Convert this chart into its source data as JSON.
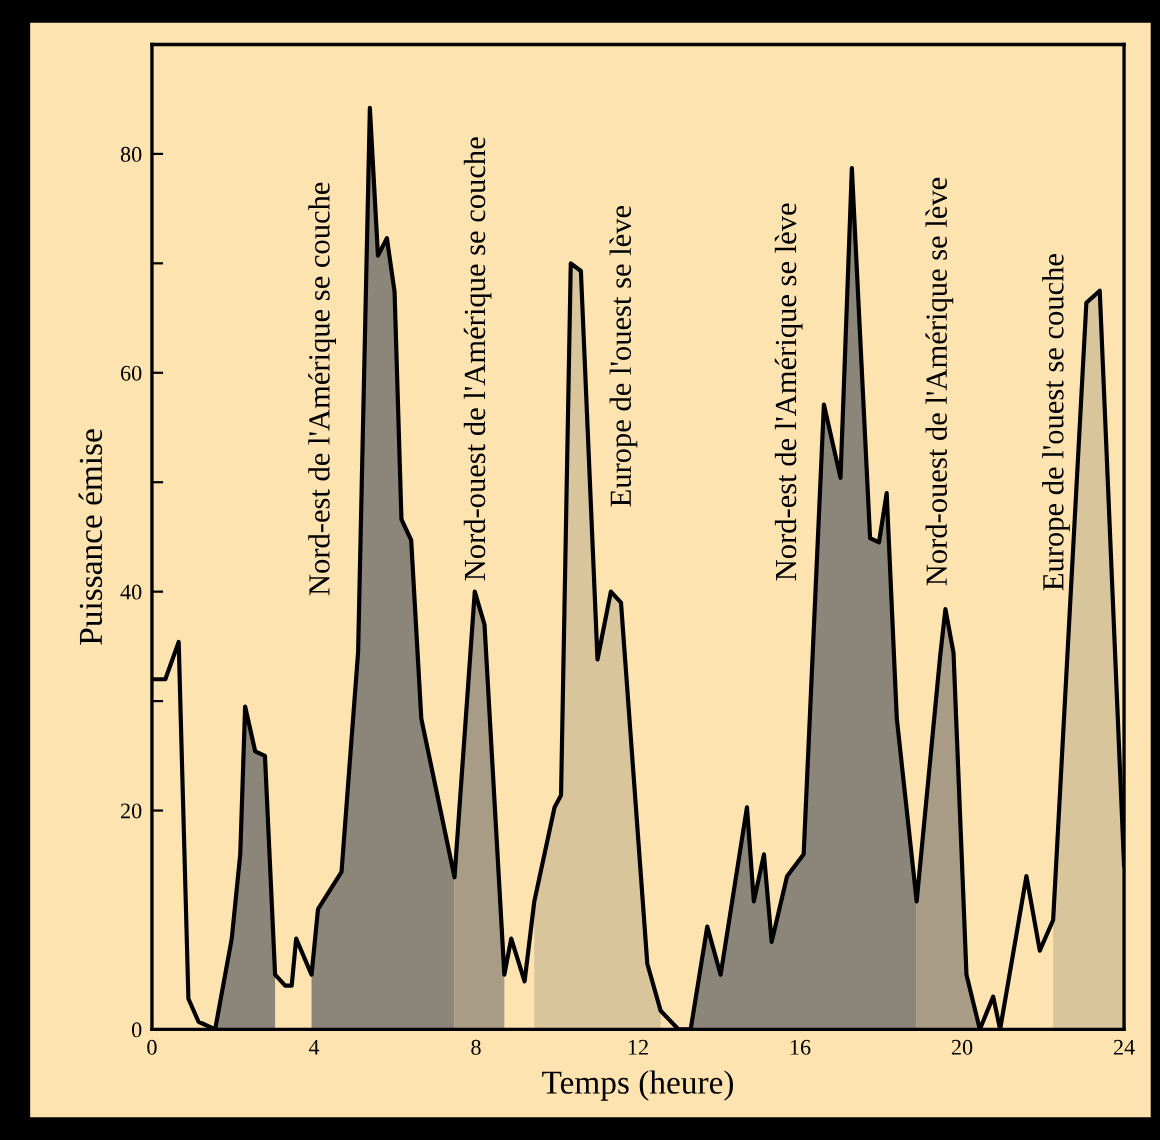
{
  "chart_data": {
    "type": "line",
    "xlabel": "Temps (heure)",
    "ylabel": "Puissance émise",
    "xlim": [
      0,
      24
    ],
    "xticks": [
      0,
      4,
      8,
      12,
      16,
      20,
      24
    ],
    "ylim": [
      0,
      90
    ],
    "yticks": [
      0,
      20,
      {
        "value": 30,
        "label": null
      },
      40,
      {
        "value": 50,
        "label": null
      },
      60,
      {
        "value": 70,
        "label": null
      },
      80
    ],
    "grid": false,
    "legend": false,
    "marker": "none",
    "line_style": "solid",
    "series": [
      {
        "color": "#000000",
        "x": [
          0,
          0.33,
          0.66,
          0.9,
          1.15,
          1.56,
          1.97,
          2.18,
          2.3,
          2.55,
          2.79,
          3.04,
          3.29,
          3.45,
          3.56,
          3.94,
          4.1,
          4.68,
          5.09,
          5.38,
          5.58,
          5.8,
          5.99,
          6.16,
          6.4,
          6.65,
          7.47,
          7.97,
          8.21,
          8.7,
          8.87,
          9.2,
          9.44,
          9.94,
          10.1,
          10.34,
          10.59,
          11.0,
          11.33,
          11.58,
          12.23,
          12.56,
          13.0,
          13.3,
          13.71,
          14.04,
          14.69,
          14.86,
          15.11,
          15.3,
          15.68,
          16.09,
          16.59,
          17.0,
          17.28,
          17.73,
          17.95,
          18.14,
          18.39,
          18.88,
          19.46,
          19.59,
          19.79,
          20.11,
          20.44,
          20.77,
          20.94,
          21.59,
          21.92,
          22.25,
          23.07,
          23.4,
          24
        ],
        "values": [
          32,
          32,
          35.4,
          2.8,
          0.7,
          0,
          8.3,
          16,
          29.5,
          25.4,
          25,
          5,
          4,
          4,
          8.3,
          5,
          11,
          14.4,
          34.5,
          84.2,
          70.7,
          72.3,
          67.4,
          46.6,
          44.7,
          28.4,
          13.9,
          40,
          37,
          5,
          8.3,
          4.4,
          11.7,
          20.3,
          21.4,
          70,
          69.3,
          33.8,
          40,
          39,
          6,
          1.7,
          0,
          0,
          9.4,
          5,
          20.3,
          11.7,
          16,
          8,
          14,
          16,
          57.1,
          50.4,
          78.7,
          44.9,
          44.5,
          49,
          28.4,
          11.7,
          34.1,
          38.4,
          34.4,
          5,
          0,
          3,
          0,
          14,
          7.2,
          10,
          66.4,
          67.5,
          15
        ]
      },
      {
        "type": "area",
        "color": "#8c8579",
        "x": [
          1.56,
          1.97,
          2.18,
          2.3,
          2.55,
          2.79,
          3.04
        ],
        "values": [
          0,
          8.3,
          16,
          29.5,
          25.4,
          25,
          5
        ]
      },
      {
        "type": "area",
        "color": "#8c8579",
        "x": [
          3.94,
          4.1,
          4.68,
          5.09,
          5.38,
          5.58,
          5.8,
          5.99,
          6.16,
          6.4,
          6.65,
          7.47
        ],
        "values": [
          5,
          11,
          14.4,
          34.5,
          84.2,
          70.7,
          72.3,
          67.4,
          46.6,
          44.7,
          28.4,
          13.9
        ]
      },
      {
        "type": "area",
        "color": "#a89c86",
        "x": [
          7.47,
          7.97,
          8.21,
          8.7
        ],
        "values": [
          13.9,
          40,
          37,
          5
        ]
      },
      {
        "type": "area",
        "color": "#d9c59c",
        "x": [
          9.44,
          9.94,
          10.1,
          10.34,
          10.59,
          11.0,
          11.33,
          11.58,
          12.23,
          12.56
        ],
        "values": [
          11.7,
          20.3,
          21.4,
          70,
          69.3,
          33.8,
          40,
          39,
          6,
          1.7
        ]
      },
      {
        "type": "area",
        "color": "#8c8579",
        "x": [
          13.3,
          13.71,
          14.04,
          14.69,
          14.86,
          15.11,
          15.3,
          15.68,
          16.09,
          16.59,
          17.0,
          17.28,
          17.73,
          17.95,
          18.14,
          18.39,
          18.88
        ],
        "values": [
          0,
          9.4,
          5,
          20.3,
          11.7,
          16,
          8,
          14,
          16,
          57.1,
          50.4,
          78.7,
          44.9,
          44.5,
          49,
          28.4,
          11.7
        ]
      },
      {
        "type": "area",
        "color": "#a89c86",
        "x": [
          18.88,
          19.46,
          19.59,
          19.79,
          20.11,
          20.44
        ],
        "values": [
          11.7,
          34.1,
          38.4,
          34.4,
          5,
          0
        ]
      },
      {
        "type": "area",
        "color": "#d9c59c",
        "x": [
          22.25,
          23.07,
          23.4,
          24
        ],
        "values": [
          10,
          66.4,
          67.5,
          15
        ]
      }
    ],
    "annotations": [
      "Nord-est de l'Amérique se couche",
      "Nord-ouest de l'Amérique se couche",
      "Europe de l'ouest se lève",
      "Nord-est de l'Amérique se lève",
      "Nord-ouest de l'Amérique se lève",
      "Europe de l'ouest se couche"
    ]
  }
}
